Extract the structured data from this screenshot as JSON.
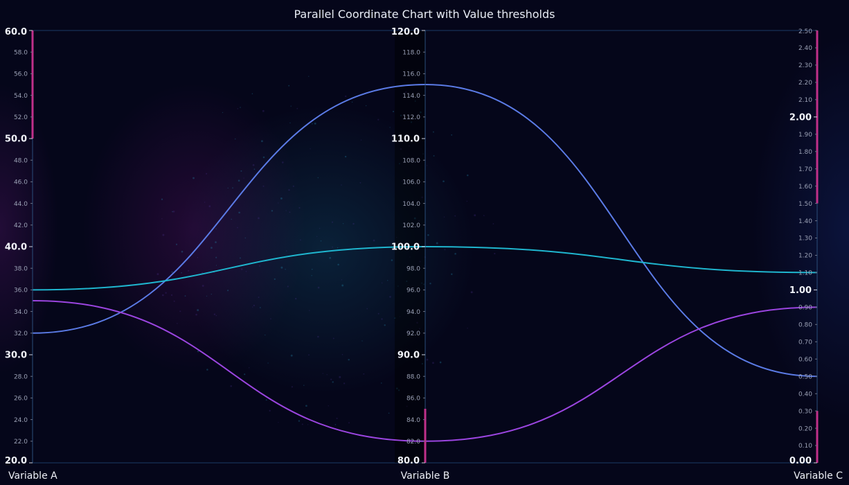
{
  "chart_data": {
    "type": "parallel-coordinates",
    "title": "Parallel Coordinate Chart with Value thresholds",
    "axes": [
      {
        "name": "Variable A",
        "min": 20,
        "max": 60,
        "major_step": 10,
        "minor_step": 2,
        "decimals": 1,
        "threshold_range": [
          50,
          60
        ]
      },
      {
        "name": "Variable B",
        "min": 80,
        "max": 120,
        "major_step": 10,
        "minor_step": 2,
        "decimals": 1,
        "threshold_range": [
          80,
          85
        ]
      },
      {
        "name": "Variable C",
        "min": 0,
        "max": 2.5,
        "major_step": 1,
        "minor_step": 0.1,
        "decimals": 2,
        "threshold_range": [
          1.5,
          2.5
        ],
        "threshold_range_2": [
          0,
          0.3
        ]
      }
    ],
    "series": [
      {
        "color": "#5b7be6",
        "values": [
          32,
          115,
          0.5
        ]
      },
      {
        "color": "#1fb6cf",
        "values": [
          36,
          100,
          1.1
        ]
      },
      {
        "color": "#9b45e0",
        "values": [
          35,
          82,
          0.9
        ]
      }
    ],
    "threshold_color": "#c0308a",
    "grid": false,
    "legend": "none"
  }
}
